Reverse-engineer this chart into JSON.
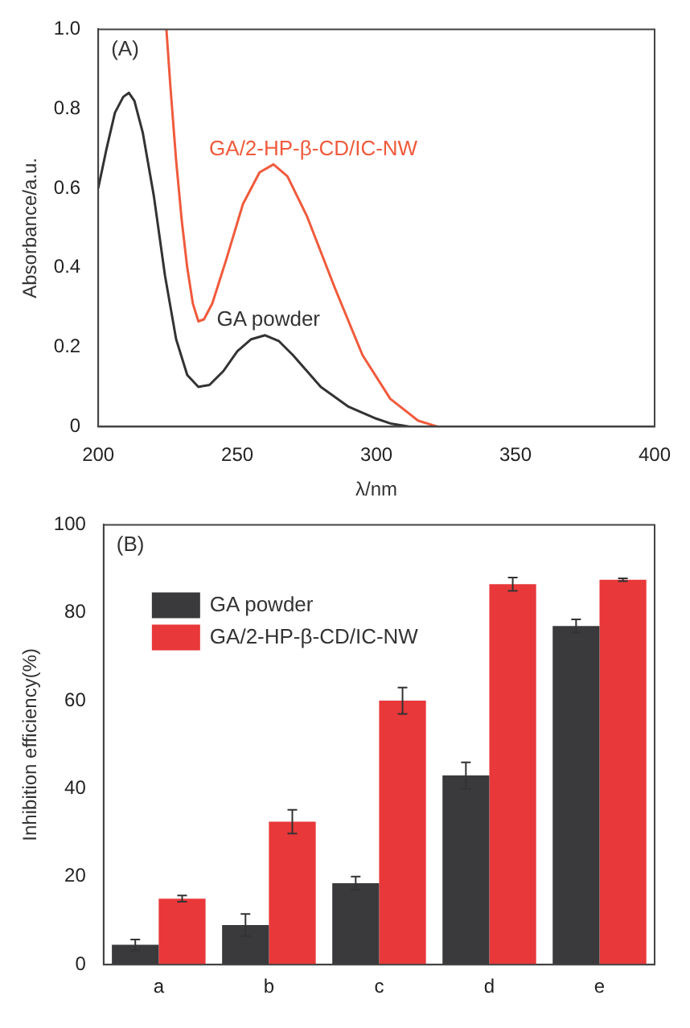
{
  "chart_data": [
    {
      "type": "line",
      "xlabel": "λ/nm",
      "ylabel": "Absorbance/a.u.",
      "annotations": [
        "(A)"
      ],
      "xlim": [
        200,
        400
      ],
      "ylim": [
        0,
        1
      ],
      "xticks": [
        200,
        250,
        300,
        350,
        400
      ],
      "yticks": [
        0,
        0.2,
        0.4,
        0.6,
        0.8,
        {
          "value": 1,
          "label": "1.0"
        }
      ],
      "grid": false,
      "legend": false,
      "marker": "none",
      "line_style": "solid",
      "series": [
        {
          "name": "GA powder",
          "color": "#333333",
          "x": [
            200,
            203,
            206,
            209,
            211,
            213,
            216,
            220,
            224,
            228,
            232,
            236,
            240,
            245,
            250,
            255,
            260,
            265,
            270,
            275,
            280,
            290,
            300,
            305,
            312,
            320,
            400
          ],
          "values": [
            0.6,
            0.7,
            0.79,
            0.83,
            0.84,
            0.82,
            0.74,
            0.58,
            0.38,
            0.22,
            0.13,
            0.1,
            0.105,
            0.14,
            0.19,
            0.22,
            0.23,
            0.215,
            0.18,
            0.14,
            0.1,
            0.05,
            0.02,
            0.008,
            0,
            0,
            0
          ]
        },
        {
          "name": "GA/2-HP-β-CD/IC-NW",
          "color": "#f05a3c",
          "x": [
            224.5,
            226,
            228,
            230,
            232,
            234,
            236,
            238,
            241,
            246,
            252,
            258,
            263,
            268,
            275,
            285,
            295,
            305,
            315,
            322,
            400
          ],
          "values": [
            1.0,
            0.85,
            0.67,
            0.52,
            0.4,
            0.31,
            0.265,
            0.27,
            0.31,
            0.42,
            0.56,
            0.64,
            0.66,
            0.63,
            0.53,
            0.35,
            0.18,
            0.07,
            0.015,
            0,
            0
          ]
        }
      ]
    },
    {
      "type": "bar",
      "ylabel": "Inhibition efficiency(%)",
      "annotations": [
        "(B)"
      ],
      "categories": [
        "a",
        "b",
        "c",
        "d",
        "e"
      ],
      "ylim": [
        0,
        100
      ],
      "yticks": [
        0,
        20,
        40,
        60,
        80,
        100
      ],
      "grid": false,
      "legend": "top left",
      "series": [
        {
          "name": "GA powder",
          "color": "#3a3a3c",
          "values": [
            4.5,
            9,
            18.5,
            43,
            77
          ],
          "errors": [
            1.2,
            2.5,
            1.5,
            3,
            1.5
          ]
        },
        {
          "name": "GA/2-HP-β-CD/IC-NW",
          "color": "#e8383a",
          "values": [
            15,
            32.5,
            60,
            86.5,
            87.5
          ],
          "errors": [
            0.7,
            2.7,
            3,
            1.5,
            0.3
          ]
        }
      ]
    }
  ]
}
